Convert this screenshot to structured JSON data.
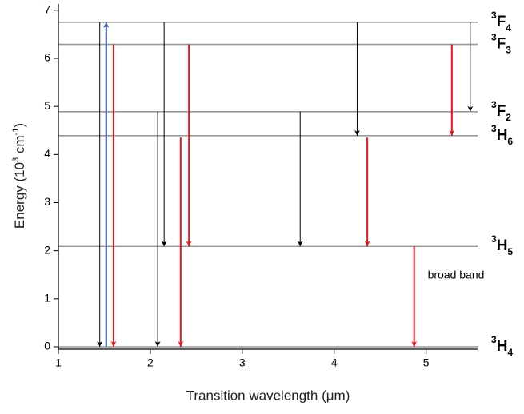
{
  "chart_data": {
    "type": "energy-levels",
    "xlabel": "Transition wavelength (μm)",
    "ylabel_parts": [
      "Energy (10",
      "3",
      " cm",
      "-1",
      ")"
    ],
    "xlim": [
      1,
      5.56
    ],
    "ylim": [
      -0.05,
      7.13
    ],
    "xticks": [
      1,
      2,
      3,
      4,
      5
    ],
    "yticks": [
      0,
      1,
      2,
      3,
      4,
      5,
      6,
      7
    ],
    "level_color": "#999999",
    "levels": [
      {
        "multiplicity": "3",
        "letter": "F",
        "j": "4",
        "energy": 6.75
      },
      {
        "multiplicity": "3",
        "letter": "F",
        "j": "3",
        "energy": 6.29
      },
      {
        "multiplicity": "3",
        "letter": "F",
        "j": "2",
        "energy": 4.89
      },
      {
        "multiplicity": "3",
        "letter": "H",
        "j": "6",
        "energy": 4.39
      },
      {
        "multiplicity": "3",
        "letter": "H",
        "j": "5",
        "energy": 2.09
      },
      {
        "multiplicity": "3",
        "letter": "H",
        "j": "4",
        "energy": 0
      }
    ],
    "transitions": [
      {
        "x": 1.45,
        "from": 6.75,
        "to": 0,
        "color": "#000000"
      },
      {
        "x": 1.52,
        "from": 0,
        "to": 6.75,
        "color": "#3050a0"
      },
      {
        "x": 1.6,
        "from": 6.29,
        "to": 0,
        "color": "#e8141c"
      },
      {
        "x": 2.08,
        "from": 4.89,
        "to": 0,
        "color": "#000000"
      },
      {
        "x": 2.15,
        "from": 6.75,
        "to": 2.09,
        "color": "#000000"
      },
      {
        "x": 2.33,
        "from": 4.35,
        "to": 0,
        "color": "#e8141c"
      },
      {
        "x": 2.42,
        "from": 6.29,
        "to": 2.09,
        "color": "#e8141c"
      },
      {
        "x": 3.63,
        "from": 4.89,
        "to": 2.09,
        "color": "#000000"
      },
      {
        "x": 4.25,
        "from": 6.75,
        "to": 4.39,
        "color": "#000000"
      },
      {
        "x": 4.36,
        "from": 4.35,
        "to": 2.09,
        "color": "#e8141c"
      },
      {
        "x": 4.87,
        "from": 2.09,
        "to": 0,
        "color": "#e8141c"
      },
      {
        "x": 5.28,
        "from": 6.29,
        "to": 4.39,
        "color": "#e8141c"
      },
      {
        "x": 5.48,
        "from": 6.75,
        "to": 4.89,
        "color": "#000000"
      }
    ],
    "annotation": {
      "text": "broad band",
      "color": "#e8141c"
    }
  }
}
